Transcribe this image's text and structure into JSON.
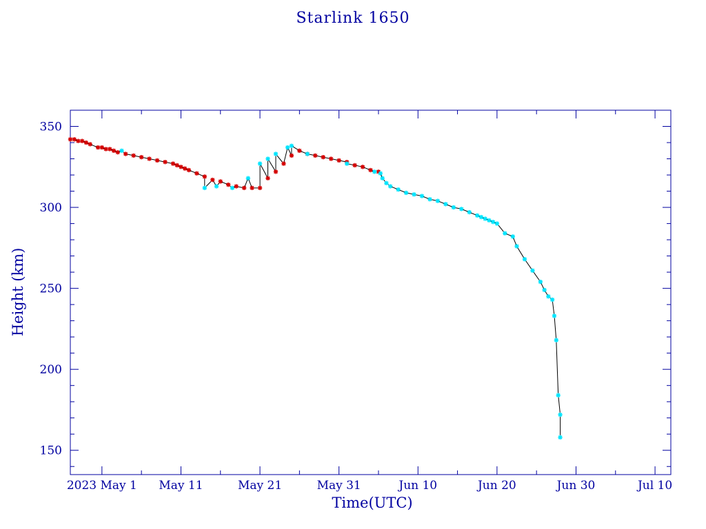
{
  "colors": {
    "axis": "#0000a0",
    "series_red": "#d40000",
    "series_cyan": "#00e5ff",
    "line": "#000000"
  },
  "chart_data": {
    "type": "scatter",
    "title": "Starlink 1650",
    "xlabel": "Time(UTC)",
    "ylabel": "Height (km)",
    "xlim": [
      "2023-04-27",
      "2023-07-12"
    ],
    "ylim": [
      135,
      360
    ],
    "x_ticks": [
      {
        "x": "2023-05-01",
        "label": "2023 May  1"
      },
      {
        "x": "2023-05-11",
        "label": "May 11"
      },
      {
        "x": "2023-05-21",
        "label": "May 21"
      },
      {
        "x": "2023-05-31",
        "label": "May 31"
      },
      {
        "x": "2023-06-10",
        "label": "Jun 10"
      },
      {
        "x": "2023-06-20",
        "label": "Jun 20"
      },
      {
        "x": "2023-06-30",
        "label": "Jun 30"
      },
      {
        "x": "2023-07-10",
        "label": "Jul 10"
      }
    ],
    "y_ticks": [
      150,
      200,
      250,
      300,
      350
    ],
    "series": [
      {
        "color": "red",
        "x": [
          "2023-04-27T00:00",
          "2023-04-27T12:00",
          "2023-04-28T00:00",
          "2023-04-28T12:00",
          "2023-04-29T00:00",
          "2023-04-29T12:00",
          "2023-04-30T12:00",
          "2023-05-01T00:00",
          "2023-05-01T12:00",
          "2023-05-02T00:00",
          "2023-05-02T12:00",
          "2023-05-03T00:00",
          "2023-05-04T00:00",
          "2023-05-05T00:00",
          "2023-05-06T00:00",
          "2023-05-07T00:00",
          "2023-05-08T00:00",
          "2023-05-09T00:00",
          "2023-05-10T00:00",
          "2023-05-10T12:00",
          "2023-05-11T00:00",
          "2023-05-11T12:00",
          "2023-05-12T00:00",
          "2023-05-13T00:00",
          "2023-05-14T00:00",
          "2023-05-15T00:00",
          "2023-05-16T00:00",
          "2023-05-17T00:00",
          "2023-05-18T00:00",
          "2023-05-19T00:00",
          "2023-05-20T00:00",
          "2023-05-21T00:00",
          "2023-05-22T00:00",
          "2023-05-23T00:00",
          "2023-05-24T00:00",
          "2023-05-25T00:00",
          "2023-05-26T00:00",
          "2023-05-27T00:00",
          "2023-05-28T00:00",
          "2023-05-29T00:00",
          "2023-05-30T00:00",
          "2023-05-31T00:00",
          "2023-06-01T00:00",
          "2023-06-02T00:00",
          "2023-06-03T00:00",
          "2023-06-04T00:00",
          "2023-06-05T00:00"
        ],
        "y": [
          342,
          342,
          341,
          341,
          340,
          339,
          337,
          337,
          336,
          336,
          335,
          334,
          333,
          332,
          331,
          330,
          329,
          328,
          327,
          326,
          325,
          324,
          323,
          321,
          319,
          317,
          316,
          314,
          313,
          312,
          312,
          312,
          318,
          322,
          327,
          332,
          335,
          333,
          332,
          331,
          330,
          329,
          328,
          326,
          325,
          323,
          322
        ]
      },
      {
        "color": "cyan",
        "x": [
          "2023-05-03T12:00",
          "2023-05-14T00:00",
          "2023-05-15T12:00",
          "2023-05-17T12:00",
          "2023-05-19T12:00",
          "2023-05-21T00:00",
          "2023-05-22T00:00",
          "2023-05-23T00:00",
          "2023-05-24T12:00",
          "2023-05-25T00:00",
          "2023-05-27T00:00",
          "2023-06-01T00:00",
          "2023-06-04T12:00",
          "2023-06-05T06:00",
          "2023-06-05T12:00",
          "2023-06-06T00:00",
          "2023-06-06T12:00",
          "2023-06-07T12:00",
          "2023-06-08T12:00",
          "2023-06-09T12:00",
          "2023-06-10T12:00",
          "2023-06-11T12:00",
          "2023-06-12T12:00",
          "2023-06-13T12:00",
          "2023-06-14T12:00",
          "2023-06-15T12:00",
          "2023-06-16T12:00",
          "2023-06-17T12:00",
          "2023-06-18T00:00",
          "2023-06-18T12:00",
          "2023-06-19T00:00",
          "2023-06-19T12:00",
          "2023-06-20T00:00",
          "2023-06-21T00:00",
          "2023-06-22T00:00",
          "2023-06-22T12:00",
          "2023-06-23T12:00",
          "2023-06-24T12:00",
          "2023-06-25T12:00",
          "2023-06-26T00:00",
          "2023-06-26T12:00",
          "2023-06-27T00:00",
          "2023-06-27T06:00",
          "2023-06-27T12:00",
          "2023-06-27T18:00",
          "2023-06-28T00:00",
          "2023-06-28T00:00"
        ],
        "y": [
          335,
          312,
          313,
          312,
          318,
          327,
          330,
          333,
          337,
          338,
          333,
          327,
          322,
          321,
          318,
          315,
          313,
          311,
          309,
          308,
          307,
          305,
          304,
          302,
          300,
          299,
          297,
          295,
          294,
          293,
          292,
          291,
          290,
          284,
          282,
          276,
          268,
          261,
          254,
          249,
          245,
          243,
          233,
          218,
          184,
          172,
          158
        ]
      }
    ]
  }
}
